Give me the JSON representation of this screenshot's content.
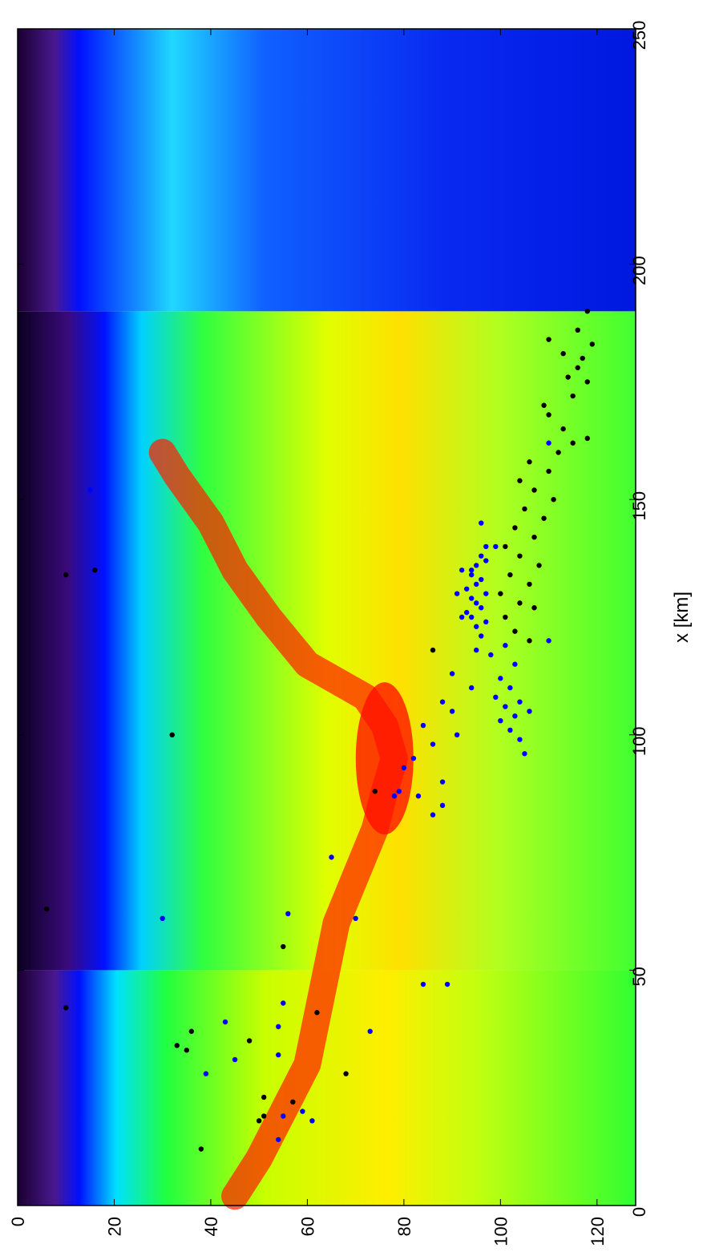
{
  "chart_data": {
    "type": "heatmap",
    "title": "",
    "orientation": "rotated-90-clockwise",
    "x_axis": {
      "label": "x [km]",
      "range": [
        0,
        250
      ],
      "ticks": [
        0,
        50,
        100,
        150,
        200,
        250
      ],
      "tick_labels": [
        "0",
        "50",
        "100",
        "150",
        "200",
        "250"
      ]
    },
    "y_axis": {
      "label": "",
      "range": [
        0,
        128
      ],
      "ticks": [
        0,
        20,
        40,
        60,
        80,
        100,
        120
      ],
      "tick_labels": [
        "0",
        "20",
        "40",
        "60",
        "80",
        "100",
        "120"
      ]
    },
    "colormap": [
      "#000000",
      "#3a0a5a",
      "#5a1aa0",
      "#0000ff",
      "#00ccff",
      "#00ff40",
      "#ffff00",
      "#ff0000"
    ],
    "segments": [
      {
        "x_range": [
          0,
          50
        ],
        "surface_depth": 12,
        "intensity_profile": "high"
      },
      {
        "x_range": [
          50,
          190
        ],
        "surface_depth": "variable 15-40",
        "intensity_profile": "high"
      },
      {
        "x_range": [
          190,
          250
        ],
        "surface_depth": 16,
        "intensity_profile": "low"
      }
    ],
    "series": [
      {
        "color": "#0000ff",
        "points": [
          [
            14,
            54
          ],
          [
            18,
            61
          ],
          [
            19,
            55
          ],
          [
            20,
            59
          ],
          [
            28,
            39
          ],
          [
            31,
            45
          ],
          [
            32,
            54
          ],
          [
            37,
            73
          ],
          [
            38,
            54
          ],
          [
            39,
            43
          ],
          [
            43,
            55
          ],
          [
            47,
            84
          ],
          [
            47,
            89
          ],
          [
            61,
            30
          ],
          [
            61,
            70
          ],
          [
            62,
            56
          ],
          [
            74,
            65
          ],
          [
            83,
            86
          ],
          [
            85,
            88
          ],
          [
            87,
            83
          ],
          [
            87,
            78
          ],
          [
            88,
            79
          ],
          [
            90,
            88
          ],
          [
            93,
            80
          ],
          [
            95,
            82
          ],
          [
            98,
            86
          ],
          [
            100,
            91
          ],
          [
            102,
            84
          ],
          [
            105,
            90
          ],
          [
            107,
            88
          ],
          [
            110,
            94
          ],
          [
            113,
            90
          ],
          [
            118,
            95
          ],
          [
            120,
            110
          ],
          [
            125,
            92
          ],
          [
            130,
            91
          ],
          [
            135,
            94
          ],
          [
            140,
            97
          ],
          [
            145,
            96
          ],
          [
            152,
            15
          ],
          [
            162,
            110
          ],
          [
            96,
            105
          ],
          [
            99,
            104
          ],
          [
            101,
            102
          ],
          [
            103,
            100
          ],
          [
            104,
            103
          ],
          [
            105,
            106
          ],
          [
            106,
            101
          ],
          [
            107,
            104
          ],
          [
            108,
            99
          ],
          [
            110,
            102
          ],
          [
            112,
            100
          ],
          [
            115,
            103
          ],
          [
            117,
            98
          ],
          [
            119,
            101
          ],
          [
            121,
            96
          ],
          [
            123,
            95
          ],
          [
            124,
            97
          ],
          [
            125,
            94
          ],
          [
            126,
            93
          ],
          [
            127,
            96
          ],
          [
            128,
            95
          ],
          [
            129,
            94
          ],
          [
            130,
            97
          ],
          [
            131,
            93
          ],
          [
            132,
            95
          ],
          [
            133,
            96
          ],
          [
            134,
            94
          ],
          [
            135,
            92
          ],
          [
            136,
            95
          ],
          [
            137,
            97
          ],
          [
            138,
            96
          ],
          [
            140,
            99
          ]
        ]
      },
      {
        "color": "#000000",
        "points": [
          [
            12,
            38
          ],
          [
            18,
            50
          ],
          [
            19,
            51
          ],
          [
            22,
            57
          ],
          [
            23,
            51
          ],
          [
            28,
            68
          ],
          [
            33,
            35
          ],
          [
            34,
            33
          ],
          [
            35,
            48
          ],
          [
            37,
            36
          ],
          [
            41,
            62
          ],
          [
            42,
            10
          ],
          [
            55,
            55
          ],
          [
            63,
            6
          ],
          [
            88,
            74
          ],
          [
            100,
            32
          ],
          [
            118,
            86
          ],
          [
            134,
            10
          ],
          [
            135,
            16
          ],
          [
            120,
            106
          ],
          [
            122,
            103
          ],
          [
            125,
            101
          ],
          [
            127,
            107
          ],
          [
            128,
            104
          ],
          [
            130,
            100
          ],
          [
            132,
            106
          ],
          [
            134,
            102
          ],
          [
            136,
            108
          ],
          [
            138,
            104
          ],
          [
            140,
            101
          ],
          [
            142,
            107
          ],
          [
            144,
            103
          ],
          [
            146,
            109
          ],
          [
            148,
            105
          ],
          [
            150,
            111
          ],
          [
            152,
            107
          ],
          [
            154,
            104
          ],
          [
            156,
            110
          ],
          [
            158,
            106
          ],
          [
            160,
            112
          ],
          [
            162,
            115
          ],
          [
            163,
            118
          ],
          [
            165,
            113
          ],
          [
            168,
            110
          ],
          [
            170,
            109
          ],
          [
            172,
            115
          ],
          [
            175,
            118
          ],
          [
            176,
            114
          ],
          [
            178,
            116
          ],
          [
            180,
            117
          ],
          [
            181,
            113
          ],
          [
            183,
            119
          ],
          [
            184,
            110
          ],
          [
            186,
            116
          ],
          [
            190,
            118
          ]
        ]
      }
    ]
  }
}
